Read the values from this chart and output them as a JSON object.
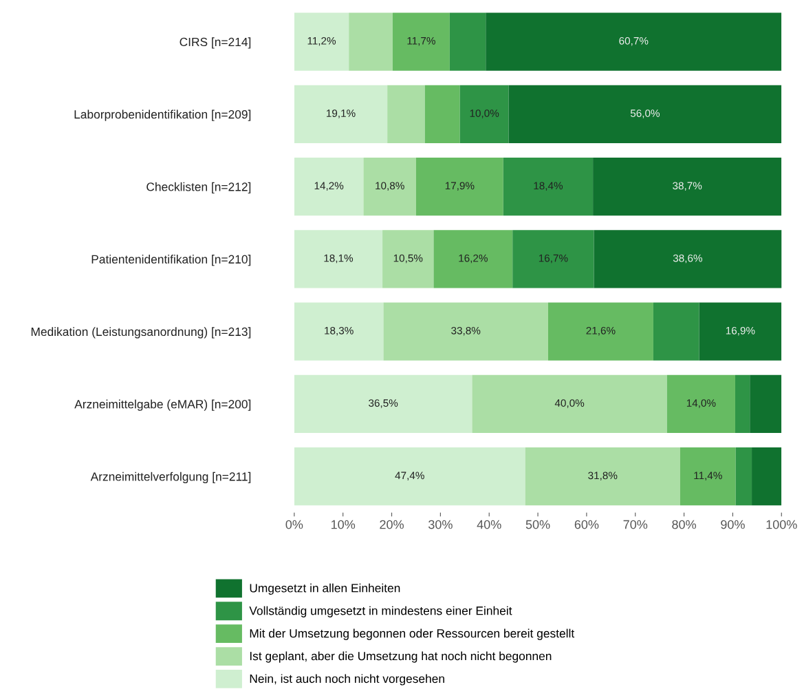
{
  "chart_data": {
    "type": "bar",
    "orientation": "horizontal",
    "stacked": true,
    "categories": [
      "CIRS [n=214]",
      "Laborprobenidentifikation [n=209]",
      "Checklisten [n=212]",
      "Patientenidentifikation [n=210]",
      "Medikation (Leistungsanordnung) [n=213]",
      "Arzneimittelgabe (eMAR) [n=200]",
      "Arzneimittelverfolgung [n=211]"
    ],
    "series": [
      {
        "name": "Nein, ist auch noch nicht vorgesehen",
        "color": "#cfefd0",
        "values": [
          11.2,
          19.1,
          14.2,
          18.1,
          18.3,
          36.5,
          47.4
        ],
        "value_labels": [
          "11,2%",
          "19,1%",
          "14,2%",
          "18,1%",
          "18,3%",
          "36,5%",
          "47,4%"
        ]
      },
      {
        "name": "Ist geplant, aber die Umsetzung hat noch nicht begonnen",
        "color": "#abdea5",
        "values": [
          9.0,
          7.7,
          10.8,
          10.5,
          33.8,
          40.0,
          31.8
        ],
        "value_labels": [
          null,
          null,
          "10,8%",
          "10,5%",
          "33,8%",
          "40,0%",
          "31,8%"
        ]
      },
      {
        "name": "Mit der Umsetzung begonnen oder Ressourcen bereit gestellt",
        "color": "#66bb62",
        "values": [
          11.7,
          7.2,
          17.9,
          16.2,
          21.6,
          14.0,
          11.4
        ],
        "value_labels": [
          "11,7%",
          null,
          "17,9%",
          "16,2%",
          "21,6%",
          "14,0%",
          "11,4%"
        ]
      },
      {
        "name": "Vollständig umgesetzt in mindestens einer Einheit",
        "color": "#2e9446",
        "values": [
          7.4,
          10.0,
          18.4,
          16.7,
          9.4,
          3.0,
          3.3
        ],
        "value_labels": [
          null,
          "10,0%",
          "18,4%",
          "16,7%",
          null,
          null,
          null
        ]
      },
      {
        "name": "Umgesetzt in allen Einheiten",
        "color": "#10722f",
        "values": [
          60.7,
          56.0,
          38.7,
          38.6,
          16.9,
          6.5,
          6.1
        ],
        "value_labels": [
          "60,7%",
          "56,0%",
          "38,7%",
          "38,6%",
          "16,9%",
          null,
          null
        ]
      }
    ],
    "xlim": [
      0,
      100
    ],
    "xticks": [
      {
        "value": 0,
        "label": "0%"
      },
      {
        "value": 10,
        "label": "10%"
      },
      {
        "value": 20,
        "label": "20%"
      },
      {
        "value": 30,
        "label": "30%"
      },
      {
        "value": 40,
        "label": "40%"
      },
      {
        "value": 50,
        "label": "50%"
      },
      {
        "value": 60,
        "label": "60%"
      },
      {
        "value": 70,
        "label": "70%"
      },
      {
        "value": 80,
        "label": "80%"
      },
      {
        "value": 90,
        "label": "90%"
      },
      {
        "value": 100,
        "label": "100%"
      }
    ],
    "grid": false,
    "legend": "bottom"
  }
}
